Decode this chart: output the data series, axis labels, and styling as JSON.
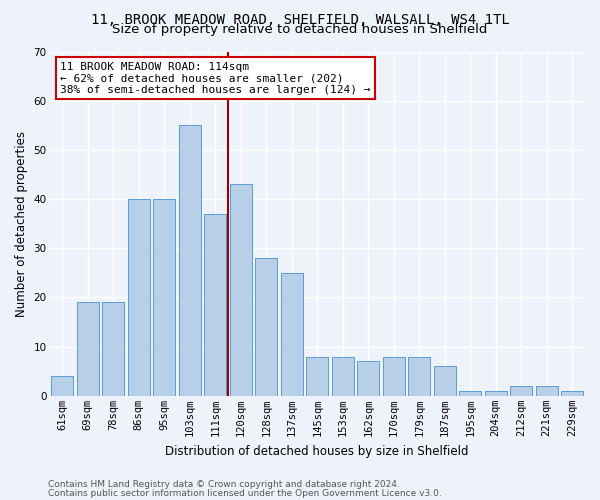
{
  "title": "11, BROOK MEADOW ROAD, SHELFIELD, WALSALL, WS4 1TL",
  "subtitle": "Size of property relative to detached houses in Shelfield",
  "xlabel": "Distribution of detached houses by size in Shelfield",
  "ylabel": "Number of detached properties",
  "categories": [
    "61sqm",
    "69sqm",
    "78sqm",
    "86sqm",
    "95sqm",
    "103sqm",
    "111sqm",
    "120sqm",
    "128sqm",
    "137sqm",
    "145sqm",
    "153sqm",
    "162sqm",
    "170sqm",
    "179sqm",
    "187sqm",
    "195sqm",
    "204sqm",
    "212sqm",
    "221sqm",
    "229sqm"
  ],
  "values": [
    4,
    19,
    19,
    40,
    40,
    55,
    37,
    43,
    28,
    25,
    8,
    8,
    7,
    8,
    8,
    6,
    1,
    1,
    2,
    2,
    1
  ],
  "bar_color": "#b8cfe8",
  "bar_edge_color": "#5b9bd5",
  "background_color": "#eef2fb",
  "grid_color": "#ffffff",
  "property_line_x": 6.5,
  "property_line_color": "#990000",
  "annotation_text": "11 BROOK MEADOW ROAD: 114sqm\n← 62% of detached houses are smaller (202)\n38% of semi-detached houses are larger (124) →",
  "annotation_box_color": "#ffffff",
  "annotation_box_edge_color": "#cc0000",
  "ylim": [
    0,
    70
  ],
  "yticks": [
    0,
    10,
    20,
    30,
    40,
    50,
    60,
    70
  ],
  "footer1": "Contains HM Land Registry data © Crown copyright and database right 2024.",
  "footer2": "Contains public sector information licensed under the Open Government Licence v3.0.",
  "title_fontsize": 10,
  "subtitle_fontsize": 9.5,
  "axis_label_fontsize": 8.5,
  "tick_fontsize": 7.5,
  "annotation_fontsize": 8,
  "footer_fontsize": 6.5
}
